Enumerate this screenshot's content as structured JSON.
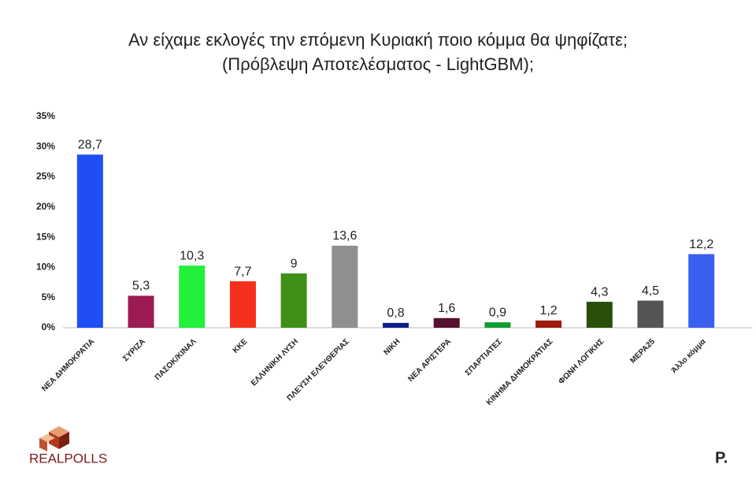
{
  "chart_data": {
    "type": "bar",
    "title": "Αν είχαμε εκλογές την επόμενη Κυριακή ποιο κόμμα θα ψηφίζατε;",
    "subtitle": "(Πρόβλεψη Αποτελέσματος - LightGBM);",
    "categories": [
      "ΝΕΑ ΔΗΜΟΚΡΑΤΙΑ",
      "ΣΥΡΙΖΑ",
      "ΠΑΣΟΚ/ΚΙΝΑΛ",
      "ΚΚΕ",
      "ΕΛΛΗΝΙΚΗ ΛΥΣΗ",
      "ΠΛΕΥΣΗ ΕΛΕΥΘΕΡΙΑΣ",
      "ΝΙΚΗ",
      "ΝΕΑ ΑΡΙΣΤΕΡΑ",
      "ΣΠΑΡΤΙΑΤΕΣ",
      "ΚΙΝΗΜΑ ΔΗΜΟΚΡΑΤΙΑΣ",
      "ΦΩΝΗ ΛΟΓΙΚΗΣ",
      "ΜΕΡΑ25",
      "Άλλο κόμμα"
    ],
    "values": [
      28.7,
      5.3,
      10.3,
      7.7,
      9,
      13.6,
      0.8,
      1.6,
      0.9,
      1.2,
      4.3,
      4.5,
      12.2
    ],
    "value_labels": [
      "28,7",
      "5,3",
      "10,3",
      "7,7",
      "9",
      "13,6",
      "0,8",
      "1,6",
      "0,9",
      "1,2",
      "4,3",
      "4,5",
      "12,2"
    ],
    "colors": [
      "#1f4ef5",
      "#9b1b52",
      "#22f03a",
      "#f5301c",
      "#3f8f19",
      "#8f8f8f",
      "#0d1f8c",
      "#5a1030",
      "#0f9c2c",
      "#9c1a10",
      "#2a4f0a",
      "#555555",
      "#3a60f0"
    ],
    "ylim": [
      0,
      35
    ],
    "yticks": [
      {
        "value": 0,
        "label": "0%"
      },
      {
        "value": 5,
        "label": "5%"
      },
      {
        "value": 10,
        "label": "10%"
      },
      {
        "value": 15,
        "label": "15%"
      },
      {
        "value": 20,
        "label": "20%"
      },
      {
        "value": 25,
        "label": "25%"
      },
      {
        "value": 30,
        "label": "30%"
      },
      {
        "value": 35,
        "label": "35%"
      }
    ],
    "grid": false
  },
  "logo": "REALPOLLS",
  "brand": "P."
}
